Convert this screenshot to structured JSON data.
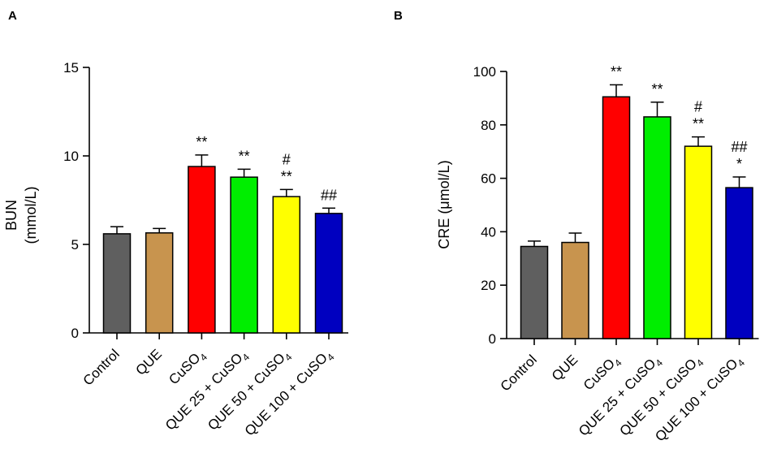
{
  "chart_data": [
    {
      "panel": "A",
      "type": "bar",
      "title": "",
      "ylabel_line1": "BUN",
      "ylabel_line2": "(mmol/L)",
      "xlabel": "",
      "ylim": [
        0,
        15
      ],
      "yticks": [
        0,
        5,
        10,
        15
      ],
      "categories": [
        {
          "main": "Control",
          "sub": "",
          "tail": ""
        },
        {
          "main": "QUE",
          "sub": "",
          "tail": ""
        },
        {
          "main": "CuSO",
          "sub": "4",
          "tail": ""
        },
        {
          "main": "QUE 25 + CuSO",
          "sub": "4",
          "tail": ""
        },
        {
          "main": "QUE 50 + CuSO",
          "sub": "4",
          "tail": ""
        },
        {
          "main": "QUE 100 + CuSO",
          "sub": "4",
          "tail": ""
        }
      ],
      "values": [
        5.6,
        5.65,
        9.4,
        8.8,
        7.7,
        6.75
      ],
      "errors": [
        0.4,
        0.25,
        0.65,
        0.45,
        0.4,
        0.3
      ],
      "colors": [
        "#5f5f5f",
        "#c8944e",
        "#ff0000",
        "#00ee00",
        "#ffff00",
        "#0000c0"
      ],
      "significance": [
        [],
        [],
        [
          "**"
        ],
        [
          "**"
        ],
        [
          "#",
          "**"
        ],
        [
          "##"
        ]
      ]
    },
    {
      "panel": "B",
      "type": "bar",
      "title": "",
      "ylabel_line1": "CRE (μmol/L)",
      "ylabel_line2": "",
      "xlabel": "",
      "ylim": [
        0,
        100
      ],
      "yticks": [
        0,
        20,
        40,
        60,
        80,
        100
      ],
      "categories": [
        {
          "main": "Control",
          "sub": "",
          "tail": ""
        },
        {
          "main": "QUE",
          "sub": "",
          "tail": ""
        },
        {
          "main": "CuSO",
          "sub": "4",
          "tail": ""
        },
        {
          "main": "QUE 25 + CuSO",
          "sub": "4",
          "tail": ""
        },
        {
          "main": "QUE 50 + CuSO",
          "sub": "4",
          "tail": ""
        },
        {
          "main": "QUE 100 + CuSO",
          "sub": "4",
          "tail": ""
        }
      ],
      "values": [
        34.5,
        36,
        90.5,
        83,
        72,
        56.5
      ],
      "errors": [
        2,
        3.5,
        4.5,
        5.5,
        3.5,
        4
      ],
      "colors": [
        "#5f5f5f",
        "#c8944e",
        "#ff0000",
        "#00ee00",
        "#ffff00",
        "#0000c0"
      ],
      "significance": [
        [],
        [],
        [
          "**"
        ],
        [
          "**"
        ],
        [
          "#",
          "**"
        ],
        [
          "##",
          "*"
        ]
      ]
    }
  ]
}
